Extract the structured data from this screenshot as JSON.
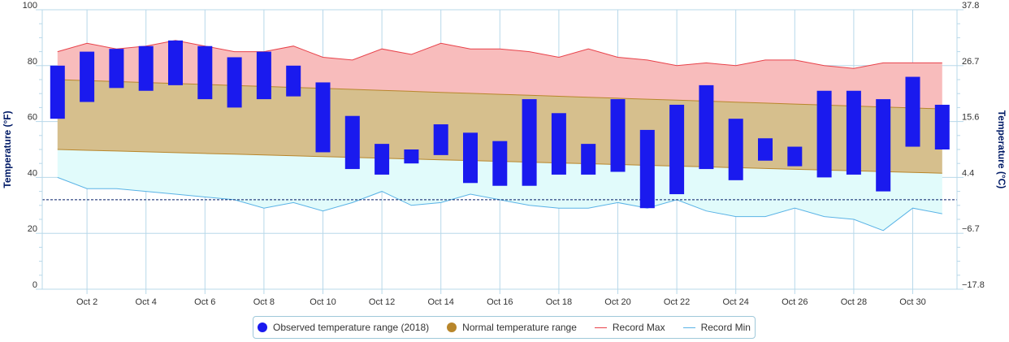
{
  "chart_data": {
    "type": "area",
    "title": "",
    "ylabel_left": "Temperature (°F)",
    "ylabel_right": "Temperature (°C)",
    "ylim": [
      0,
      100
    ],
    "y_ticks_left": [
      0,
      20,
      40,
      60,
      80,
      100
    ],
    "y_ticks_right": [
      "−17.8",
      "−6.7",
      "4.4",
      "15.6",
      "26.7",
      "37.8"
    ],
    "x_tick_days": [
      2,
      4,
      6,
      8,
      10,
      12,
      14,
      16,
      18,
      20,
      22,
      24,
      26,
      28,
      30
    ],
    "x_tick_labels": [
      "Oct 2",
      "Oct 4",
      "Oct 6",
      "Oct 8",
      "Oct 10",
      "Oct 12",
      "Oct 14",
      "Oct 16",
      "Oct 18",
      "Oct 20",
      "Oct 22",
      "Oct 24",
      "Oct 26",
      "Oct 28",
      "Oct 30"
    ],
    "days": [
      1,
      2,
      3,
      4,
      5,
      6,
      7,
      8,
      9,
      10,
      11,
      12,
      13,
      14,
      15,
      16,
      17,
      18,
      19,
      20,
      21,
      22,
      23,
      24,
      25,
      26,
      27,
      28,
      29,
      30,
      31
    ],
    "freezing_line": 32,
    "grid": true,
    "legend_position": "bottom",
    "series": [
      {
        "name": "Observed temperature range (2018)",
        "kind": "columnrange",
        "color": "#1a1aee",
        "low": [
          61,
          67,
          72,
          71,
          73,
          68,
          65,
          68,
          69,
          49,
          43,
          41,
          45,
          48,
          38,
          37,
          37,
          41,
          41,
          42,
          29,
          34,
          43,
          39,
          46,
          44,
          40,
          41,
          35,
          51,
          50
        ],
        "high": [
          80,
          85,
          86,
          87,
          89,
          87,
          83,
          85,
          80,
          74,
          62,
          52,
          50,
          59,
          56,
          53,
          68,
          63,
          52,
          68,
          57,
          66,
          73,
          61,
          54,
          51,
          71,
          71,
          68,
          76,
          66
        ]
      },
      {
        "name": "Normal temperature range",
        "kind": "arearange",
        "color": "#b8862b",
        "low_start": 50,
        "low_end": 41.5,
        "high_start": 75,
        "high_end": 64.5
      },
      {
        "name": "Record Max",
        "kind": "line",
        "color": "#e8424a",
        "values": [
          85,
          88,
          86,
          87,
          89,
          87,
          85,
          85,
          87,
          83,
          82,
          86,
          84,
          88,
          86,
          86,
          85,
          83,
          86,
          83,
          82,
          80,
          81,
          80,
          82,
          82,
          80,
          79,
          81,
          81,
          81
        ]
      },
      {
        "name": "Record Min",
        "kind": "line",
        "color": "#5ab3e6",
        "values": [
          40,
          36,
          36,
          35,
          34,
          33,
          32,
          29,
          31,
          28,
          31,
          35,
          30,
          31,
          34,
          32,
          30,
          29,
          29,
          31,
          29,
          32,
          28,
          26,
          26,
          29,
          26,
          25,
          21,
          29,
          27
        ]
      }
    ]
  },
  "legend": {
    "observed": "Observed temperature range (2018)",
    "normal": "Normal temperature range",
    "record_max": "Record Max",
    "record_min": "Record Min"
  },
  "colors": {
    "observed": "#1a1aee",
    "normal": "#b8862b",
    "normal_fill": "#d6bf8d",
    "record_max": "#e8424a",
    "record_max_fill": "#f8bcbc",
    "record_min": "#5ab3e6",
    "record_min_fill": "#e1fbfb",
    "grid": "#b8d8ea",
    "freezing": "#001a66"
  }
}
